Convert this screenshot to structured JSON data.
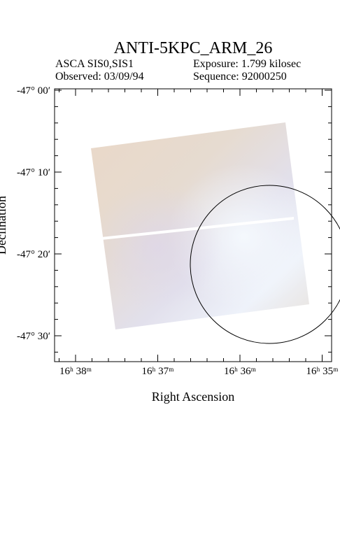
{
  "header": {
    "title": "ANTI-5KPC_ARM_26",
    "instrument": "ASCA SIS0,SIS1",
    "exposure": "Exposure: 1.799 kilosec",
    "observed": "Observed: 03/09/94",
    "sequence": "Sequence: 92000250"
  },
  "axes": {
    "x_label": "Right Ascension",
    "y_label": "Declination",
    "x_ticks": [
      "16ʰ 38ᵐ",
      "16ʰ 37ᵐ",
      "16ʰ 36ᵐ",
      "16ʰ 35ᵐ"
    ],
    "y_ticks": [
      "-47° 00′",
      "-47° 10′",
      "-47° 20′",
      "-47° 30′"
    ]
  }
}
